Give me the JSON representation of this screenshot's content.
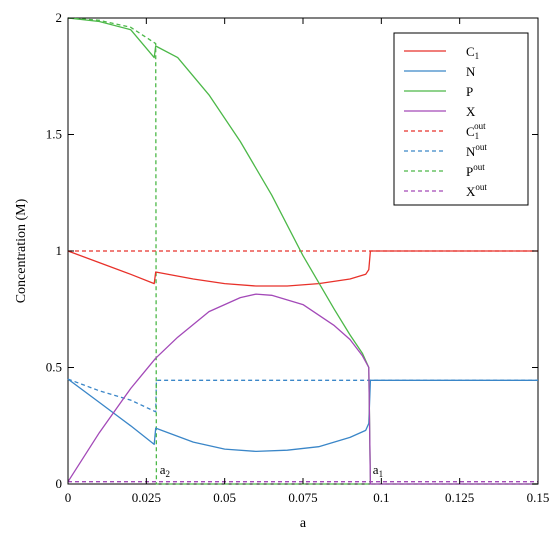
{
  "chart_data": {
    "type": "line",
    "title": "",
    "xlabel": "a",
    "ylabel": "Concentration (M)",
    "xlim": [
      0,
      0.15
    ],
    "ylim": [
      0,
      2
    ],
    "x_ticks": [
      "0",
      "0.025",
      "0.05",
      "0.075",
      "0.1",
      "0.125",
      "0.15"
    ],
    "y_ticks": [
      "0",
      "0.5",
      "1",
      "1.5",
      "2"
    ],
    "legend_position": "top-right",
    "annotations": [
      {
        "label": "a",
        "sub": "2",
        "x": 0.028
      },
      {
        "label": "a",
        "sub": "1",
        "x": 0.096
      }
    ],
    "series": [
      {
        "name": "C",
        "sub": "1",
        "sup": "",
        "color": "#e8312a",
        "dash": "solid",
        "points": [
          [
            0,
            1.0
          ],
          [
            0.01,
            0.95
          ],
          [
            0.02,
            0.9
          ],
          [
            0.0275,
            0.86
          ],
          [
            0.028,
            0.91
          ],
          [
            0.04,
            0.88
          ],
          [
            0.05,
            0.86
          ],
          [
            0.06,
            0.85
          ],
          [
            0.07,
            0.85
          ],
          [
            0.08,
            0.86
          ],
          [
            0.09,
            0.88
          ],
          [
            0.095,
            0.9
          ],
          [
            0.096,
            0.92
          ],
          [
            0.0965,
            1.0
          ],
          [
            0.15,
            1.0
          ]
        ]
      },
      {
        "name": "N",
        "sub": "",
        "sup": "",
        "color": "#3a86c8",
        "dash": "solid",
        "points": [
          [
            0,
            0.45
          ],
          [
            0.01,
            0.35
          ],
          [
            0.02,
            0.25
          ],
          [
            0.0275,
            0.17
          ],
          [
            0.028,
            0.24
          ],
          [
            0.04,
            0.18
          ],
          [
            0.05,
            0.15
          ],
          [
            0.06,
            0.14
          ],
          [
            0.07,
            0.145
          ],
          [
            0.08,
            0.16
          ],
          [
            0.09,
            0.2
          ],
          [
            0.095,
            0.23
          ],
          [
            0.096,
            0.26
          ],
          [
            0.0965,
            0.445
          ],
          [
            0.15,
            0.445
          ]
        ]
      },
      {
        "name": "P",
        "sub": "",
        "sup": "",
        "color": "#4cb848",
        "dash": "solid",
        "points": [
          [
            0,
            2.0
          ],
          [
            0.01,
            1.985
          ],
          [
            0.02,
            1.95
          ],
          [
            0.0275,
            1.83
          ],
          [
            0.028,
            1.88
          ],
          [
            0.035,
            1.83
          ],
          [
            0.045,
            1.67
          ],
          [
            0.055,
            1.47
          ],
          [
            0.065,
            1.24
          ],
          [
            0.075,
            0.98
          ],
          [
            0.085,
            0.75
          ],
          [
            0.09,
            0.64
          ],
          [
            0.094,
            0.56
          ],
          [
            0.096,
            0.5
          ],
          [
            0.0965,
            0.0
          ],
          [
            0.15,
            0.0
          ]
        ]
      },
      {
        "name": "X",
        "sub": "",
        "sup": "",
        "color": "#a349b8",
        "dash": "solid",
        "points": [
          [
            0,
            0.01
          ],
          [
            0.01,
            0.22
          ],
          [
            0.02,
            0.41
          ],
          [
            0.028,
            0.54
          ],
          [
            0.035,
            0.63
          ],
          [
            0.045,
            0.74
          ],
          [
            0.055,
            0.8
          ],
          [
            0.06,
            0.815
          ],
          [
            0.065,
            0.81
          ],
          [
            0.075,
            0.77
          ],
          [
            0.085,
            0.68
          ],
          [
            0.09,
            0.62
          ],
          [
            0.094,
            0.55
          ],
          [
            0.096,
            0.5
          ],
          [
            0.0965,
            0.0
          ],
          [
            0.15,
            0.0
          ]
        ]
      },
      {
        "name": "C",
        "sub": "1",
        "sup": "out",
        "color": "#e8312a",
        "dash": "dashed",
        "points": [
          [
            0,
            1.0
          ],
          [
            0.15,
            1.0
          ]
        ]
      },
      {
        "name": "N",
        "sub": "",
        "sup": "out",
        "color": "#3a86c8",
        "dash": "dashed",
        "points": [
          [
            0,
            0.45
          ],
          [
            0.01,
            0.4
          ],
          [
            0.02,
            0.36
          ],
          [
            0.028,
            0.31
          ],
          [
            0.0282,
            0.445
          ],
          [
            0.15,
            0.445
          ]
        ]
      },
      {
        "name": "P",
        "sub": "",
        "sup": "out",
        "color": "#4cb848",
        "dash": "dashed",
        "points": [
          [
            0,
            2.0
          ],
          [
            0.01,
            1.99
          ],
          [
            0.02,
            1.96
          ],
          [
            0.028,
            1.89
          ],
          [
            0.0282,
            0.0
          ],
          [
            0.15,
            0.0
          ]
        ]
      },
      {
        "name": "X",
        "sub": "",
        "sup": "out",
        "color": "#a349b8",
        "dash": "dashed",
        "points": [
          [
            0,
            0.01
          ],
          [
            0.15,
            0.01
          ]
        ]
      }
    ]
  }
}
